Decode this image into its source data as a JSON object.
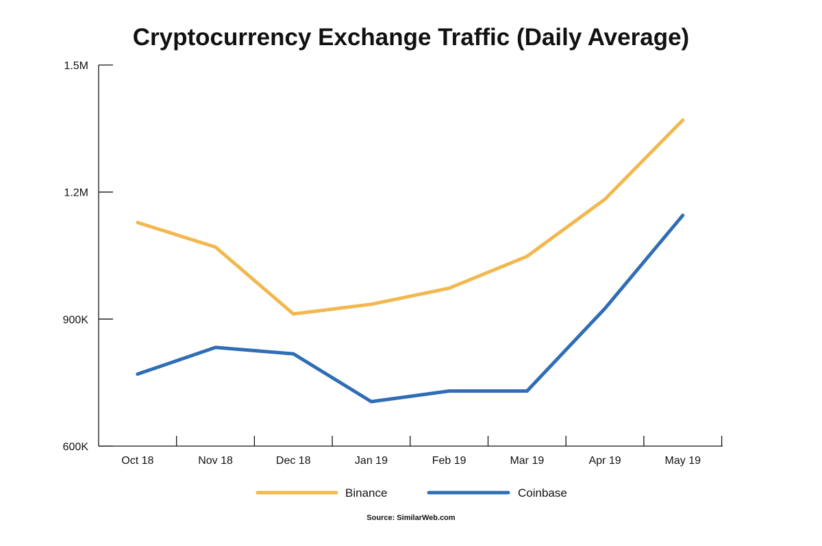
{
  "chart_data": {
    "type": "line",
    "title": "Cryptocurrency Exchange Traffic (Daily Average)",
    "xlabel": "",
    "ylabel": "",
    "categories": [
      "Oct 18",
      "Nov 18",
      "Dec 18",
      "Jan 19",
      "Feb 19",
      "Mar 19",
      "Apr 19",
      "May 19"
    ],
    "ylim": [
      600000,
      1500000
    ],
    "yticks": [
      {
        "value": 600000,
        "label": "600K"
      },
      {
        "value": 900000,
        "label": "900K"
      },
      {
        "value": 1200000,
        "label": "1.2M"
      },
      {
        "value": 1500000,
        "label": "1.5M"
      }
    ],
    "series": [
      {
        "name": "Binance",
        "color": "#F2B84E",
        "values": [
          1128000,
          1070000,
          912000,
          935000,
          973000,
          1048000,
          1183000,
          1370000
        ]
      },
      {
        "name": "Coinbase",
        "color": "#2F6DB5",
        "values": [
          770000,
          833000,
          818000,
          705000,
          730000,
          730000,
          925000,
          1145000
        ]
      }
    ],
    "legend_position": "bottom",
    "grid": false,
    "source": "Source: SimilarWeb.com"
  }
}
